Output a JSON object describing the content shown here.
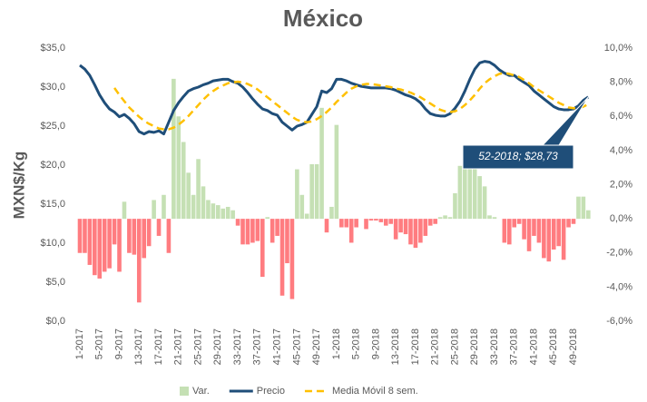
{
  "chart_data": {
    "type": "combo",
    "title": "México",
    "y_label": "MXN$/Kg",
    "annotation": "52-2018; $28,73",
    "categories": [
      "1-2017",
      null,
      null,
      null,
      "5-2017",
      null,
      null,
      null,
      "9-2017",
      null,
      null,
      null,
      "13-2017",
      null,
      null,
      null,
      "17-2017",
      null,
      null,
      null,
      "21-2017",
      null,
      null,
      null,
      "25-2017",
      null,
      null,
      null,
      "29-2017",
      null,
      null,
      null,
      "33-2017",
      null,
      null,
      null,
      "37-2017",
      null,
      null,
      null,
      "41-2017",
      null,
      null,
      null,
      "45-2017",
      null,
      null,
      null,
      "49-2017",
      null,
      null,
      null,
      "1-2018",
      null,
      null,
      null,
      "5-2018",
      null,
      null,
      null,
      "9-2018",
      null,
      null,
      null,
      "13-2018",
      null,
      null,
      null,
      "17-2018",
      null,
      null,
      null,
      "21-2018",
      null,
      null,
      null,
      "25-2018",
      null,
      null,
      null,
      "29-2018",
      null,
      null,
      null,
      "33-2018",
      null,
      null,
      null,
      "37-2018",
      null,
      null,
      null,
      "41-2018",
      null,
      null,
      null,
      "45-2018",
      null,
      null,
      null,
      "49-2018",
      null,
      null,
      null
    ],
    "series": [
      {
        "name": "Var.",
        "type": "bar",
        "axis": "y2",
        "color": "#c5e0b4",
        "negative_color": "#ff7c80",
        "values": [
          -2.0,
          -2.0,
          -2.7,
          -3.3,
          -3.5,
          -3.1,
          -2.9,
          -1.5,
          -3.1,
          1.0,
          -2.0,
          -2.1,
          -4.9,
          -2.3,
          -1.6,
          1.1,
          -1.0,
          1.4,
          -2.0,
          8.2,
          6.0,
          4.5,
          2.7,
          1.4,
          3.5,
          1.9,
          1.1,
          0.9,
          0.8,
          0.6,
          0.7,
          0.5,
          -0.4,
          -1.5,
          -1.5,
          -1.4,
          -1.3,
          -3.4,
          0.1,
          -1.4,
          -1.0,
          -4.5,
          -2.6,
          -4.7,
          2.9,
          1.4,
          0.3,
          3.2,
          3.2,
          6.5,
          -0.8,
          0.7,
          5.5,
          -0.5,
          -0.5,
          -1.4,
          -0.5,
          0,
          -0.6,
          -0.1,
          -0.1,
          -0.2,
          -0.4,
          -0.3,
          -1.2,
          -0.8,
          -0.9,
          -1.5,
          -1.7,
          -1.4,
          -1.0,
          -0.4,
          -0.3,
          0.1,
          0.2,
          0.1,
          1.5,
          3.1,
          3.4,
          3.7,
          3.3,
          2.5,
          1.9,
          0.2,
          0.1,
          0,
          -1.4,
          -1.5,
          -0.5,
          -0.3,
          -1.2,
          -1.9,
          -1.0,
          -1.4,
          -2.3,
          -2.5,
          -1.8,
          -1.6,
          -2.4,
          -0.5,
          -0.3,
          1.3,
          1.3,
          0.5
        ]
      },
      {
        "name": "Precio",
        "type": "line",
        "color": "#1f4e79",
        "values": [
          32.8,
          32.3,
          31.5,
          30.3,
          29.0,
          28.0,
          27.2,
          26.8,
          26.2,
          26.5,
          26.0,
          25.3,
          24.3,
          24.0,
          24.3,
          24.2,
          24.4,
          24.0,
          25.5,
          27.0,
          28.0,
          28.8,
          29.5,
          29.8,
          30.0,
          30.3,
          30.5,
          30.8,
          30.9,
          31.0,
          31.0,
          30.7,
          30.5,
          30.0,
          29.3,
          28.5,
          27.8,
          27.2,
          27.0,
          26.6,
          26.4,
          25.5,
          25.0,
          24.5,
          25.0,
          25.2,
          25.5,
          26.5,
          27.5,
          29.5,
          29.3,
          29.8,
          31.0,
          31.0,
          30.8,
          30.5,
          30.3,
          30.1,
          30.0,
          29.9,
          29.9,
          29.9,
          29.9,
          29.8,
          29.6,
          29.3,
          29.0,
          28.8,
          28.5,
          28.0,
          27.2,
          26.6,
          26.4,
          26.3,
          26.3,
          26.6,
          27.3,
          28.2,
          29.5,
          31.0,
          32.3,
          33.1,
          33.3,
          33.2,
          32.8,
          32.2,
          31.8,
          31.5,
          31.5,
          31.0,
          30.6,
          30.2,
          29.5,
          29.0,
          28.5,
          28.0,
          27.5,
          27.2,
          27.1,
          27.1,
          27.2,
          27.6,
          28.3,
          28.73
        ]
      },
      {
        "name": "Media Móvil 8 sem.",
        "type": "line",
        "dashed": true,
        "color": "#ffc000",
        "values": [
          null,
          null,
          null,
          null,
          null,
          null,
          null,
          29.9,
          29.0,
          28.2,
          27.4,
          26.8,
          26.2,
          25.7,
          25.3,
          25.0,
          24.7,
          24.6,
          24.6,
          24.8,
          25.2,
          25.7,
          26.3,
          27.0,
          27.7,
          28.4,
          29.0,
          29.5,
          29.9,
          30.2,
          30.5,
          30.6,
          30.7,
          30.6,
          30.4,
          30.1,
          29.7,
          29.2,
          28.7,
          28.2,
          27.7,
          27.2,
          26.7,
          26.2,
          25.8,
          25.6,
          25.5,
          25.6,
          25.9,
          26.3,
          26.8,
          27.4,
          28.1,
          28.7,
          29.3,
          29.8,
          30.1,
          30.3,
          30.4,
          30.4,
          30.3,
          30.2,
          30.1,
          30.0,
          29.8,
          29.7,
          29.5,
          29.3,
          29.0,
          28.7,
          28.3,
          27.9,
          27.5,
          27.1,
          26.9,
          26.8,
          26.9,
          27.2,
          27.7,
          28.3,
          29.0,
          29.8,
          30.5,
          31.0,
          31.4,
          31.7,
          31.8,
          31.7,
          31.5,
          31.3,
          30.9,
          30.5,
          30.0,
          29.6,
          29.2,
          28.8,
          28.4,
          28.0,
          27.7,
          27.4,
          27.3,
          27.3,
          27.5,
          27.8
        ]
      }
    ],
    "ylim": [
      0,
      35
    ],
    "yticks": [
      {
        "value": 0,
        "label": "$0,0"
      },
      {
        "value": 5,
        "label": "$5,0"
      },
      {
        "value": 10,
        "label": "$10,0"
      },
      {
        "value": 15,
        "label": "$15,0"
      },
      {
        "value": 20,
        "label": "$20,0"
      },
      {
        "value": 25,
        "label": "$25,0"
      },
      {
        "value": 30,
        "label": "$30,0"
      },
      {
        "value": 35,
        "label": "$35,0"
      }
    ],
    "y2lim": [
      -6,
      10
    ],
    "y2ticks": [
      {
        "value": -6,
        "label": "-6,0%"
      },
      {
        "value": -4,
        "label": "-4,0%"
      },
      {
        "value": -2,
        "label": "-2,0%"
      },
      {
        "value": 0,
        "label": "0,0%"
      },
      {
        "value": 2,
        "label": "2,0%"
      },
      {
        "value": 4,
        "label": "4,0%"
      },
      {
        "value": 6,
        "label": "6,0%"
      },
      {
        "value": 8,
        "label": "8,0%"
      },
      {
        "value": 10,
        "label": "10,0%"
      }
    ],
    "legend": "bottom"
  }
}
